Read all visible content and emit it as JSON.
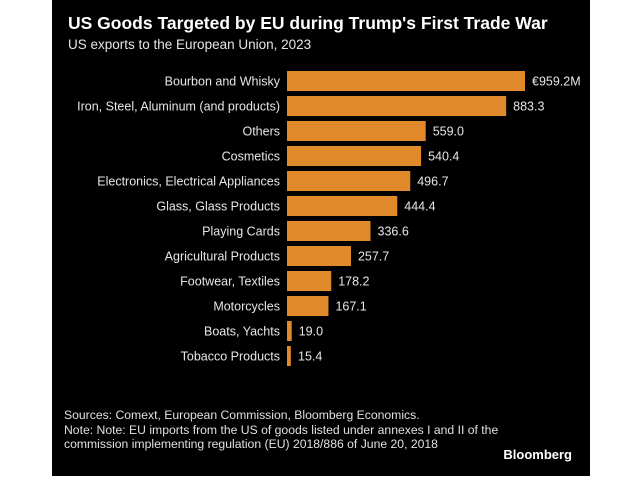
{
  "chart_data": {
    "type": "bar",
    "orientation": "horizontal",
    "title": "US Goods Targeted by EU during Trump's First Trade War",
    "subtitle": "US exports to the European Union, 2023",
    "categories": [
      "Bourbon and Whisky",
      "Iron, Steel, Aluminum (and products)",
      "Others",
      "Cosmetics",
      "Electronics, Electrical Appliances",
      "Glass, Glass Products",
      "Playing Cards",
      "Agricultural Products",
      "Footwear, Textiles",
      "Motorcycles",
      "Boats, Yachts",
      "Tobacco Products"
    ],
    "values": [
      959.2,
      883.3,
      559.0,
      540.4,
      496.7,
      444.4,
      336.6,
      257.7,
      178.2,
      167.1,
      19.0,
      15.4
    ],
    "value_labels": [
      "€959.2M",
      "883.3",
      "559.0",
      "540.4",
      "496.7",
      "444.4",
      "336.6",
      "257.7",
      "178.2",
      "167.1",
      "19.0",
      "15.4"
    ],
    "unit": "€ million",
    "xlim": [
      0,
      959.2
    ],
    "grid": false,
    "bar_color": "#e08a2c"
  },
  "footer": {
    "source": "Sources: Comext, European Commission, Bloomberg Economics.",
    "note": "Note: Note: EU imports from the US of goods listed under annexes I and II of the commission implementing regulation (EU) 2018/886 of June 20, 2018",
    "logo": "Bloomberg"
  },
  "colors": {
    "background": "#000000",
    "text": "#ffffff",
    "bar": "#e08a2c"
  }
}
